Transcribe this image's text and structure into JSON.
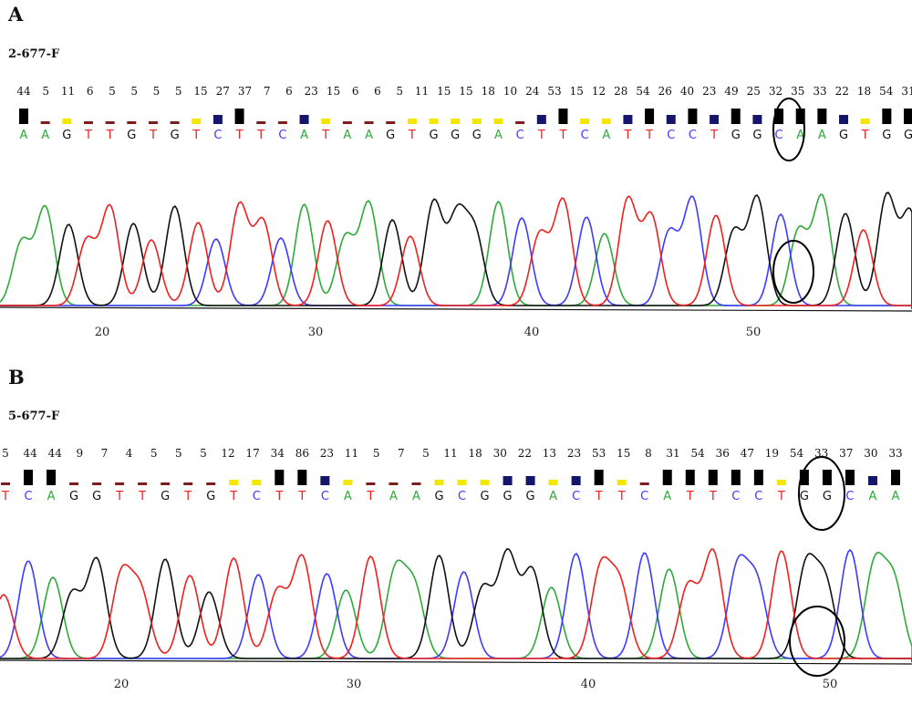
{
  "colors": {
    "A": "#2eaa3a",
    "C": "#3b3bff",
    "G": "#111111",
    "T": "#ee2020",
    "q_low": "#7a1e1e",
    "q_mid": "#f5e600",
    "q_navy": "#15156b",
    "q_high": "#000000",
    "circle": "#000000"
  },
  "panels": [
    {
      "label": "A",
      "sample": "2-677-F",
      "quality_text": [
        "44",
        "5",
        "11",
        "6",
        "5",
        "5",
        "5",
        "5",
        "15",
        "27",
        "37",
        "7",
        "6",
        "23",
        "15",
        "6",
        "6",
        "5",
        "11",
        "15",
        "15",
        "18",
        "10",
        "24",
        "53",
        "15",
        "12",
        "28",
        "54",
        "26",
        "40",
        "23",
        "49",
        "25",
        "32",
        "35",
        "33",
        "22",
        "18",
        "54",
        "31"
      ],
      "bases": [
        "A",
        "A",
        "G",
        "T",
        "T",
        "G",
        "T",
        "G",
        "T",
        "C",
        "T",
        "T",
        "C",
        "A",
        "T",
        "A",
        "A",
        "G",
        "T",
        "G",
        "G",
        "G",
        "A",
        "C",
        "T",
        "T",
        "C",
        "A",
        "T",
        "T",
        "C",
        "C",
        "T",
        "G",
        "G",
        "C",
        "A",
        "A",
        "G",
        "T",
        "G",
        "G"
      ],
      "axis_ticks": [
        "20",
        "30",
        "40",
        "50"
      ]
    },
    {
      "label": "B",
      "sample": "5-677-F",
      "quality_text": [
        "5",
        "44",
        "44",
        "9",
        "7",
        "4",
        "5",
        "5",
        "5",
        "12",
        "17",
        "34",
        "86",
        "23",
        "11",
        "5",
        "7",
        "5",
        "11",
        "18",
        "30",
        "22",
        "13",
        "23",
        "53",
        "15",
        "8",
        "31",
        "54",
        "36",
        "47",
        "19",
        "54",
        "33",
        "37",
        "30",
        "33"
      ],
      "bases": [
        "T",
        "C",
        "A",
        "G",
        "G",
        "T",
        "T",
        "G",
        "T",
        "G",
        "T",
        "C",
        "T",
        "T",
        "C",
        "A",
        "T",
        "A",
        "A",
        "G",
        "C",
        "G",
        "G",
        "G",
        "A",
        "C",
        "T",
        "T",
        "C",
        "A",
        "T",
        "T",
        "C",
        "C",
        "T",
        "G",
        "G",
        "C",
        "A",
        "A"
      ],
      "axis_ticks": [
        "20",
        "30",
        "40",
        "50"
      ]
    }
  ]
}
